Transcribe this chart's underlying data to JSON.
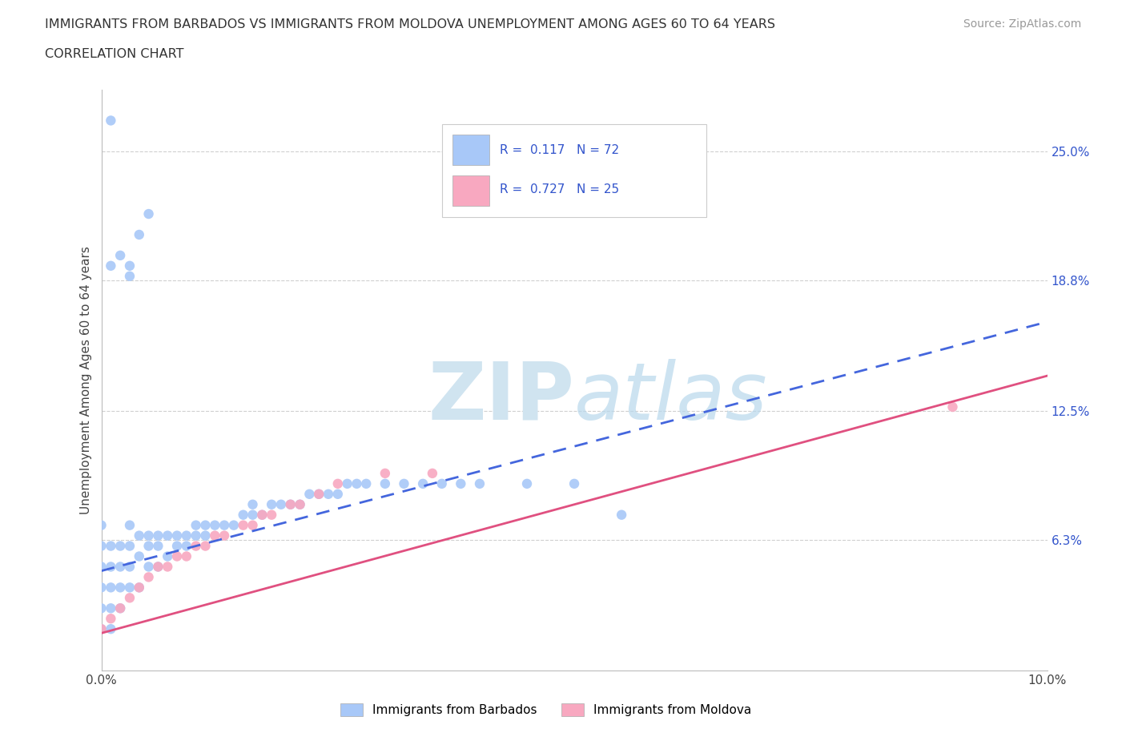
{
  "title_line1": "IMMIGRANTS FROM BARBADOS VS IMMIGRANTS FROM MOLDOVA UNEMPLOYMENT AMONG AGES 60 TO 64 YEARS",
  "title_line2": "CORRELATION CHART",
  "source_text": "Source: ZipAtlas.com",
  "ylabel": "Unemployment Among Ages 60 to 64 years",
  "xlim": [
    0.0,
    0.1
  ],
  "ylim": [
    0.0,
    0.28
  ],
  "ytick_positions": [
    0.0,
    0.063,
    0.125,
    0.188,
    0.25
  ],
  "ytick_labels": [
    "",
    "6.3%",
    "12.5%",
    "18.8%",
    "25.0%"
  ],
  "barbados_color": "#a8c8f8",
  "moldova_color": "#f8a8c0",
  "barbados_line_color": "#4466dd",
  "moldova_line_color": "#e05080",
  "grid_color": "#d0d0d0",
  "watermark_color": "#d0e4f0",
  "r_barbados": 0.117,
  "n_barbados": 72,
  "r_moldova": 0.727,
  "n_moldova": 25,
  "barbados_label": "Immigrants from Barbados",
  "moldova_label": "Immigrants from Moldova",
  "legend_r_color": "#3355cc",
  "legend_n_color": "#cc3355",
  "barbados_x": [
    0.0,
    0.0,
    0.0,
    0.0,
    0.0,
    0.0,
    0.001,
    0.001,
    0.001,
    0.001,
    0.001,
    0.002,
    0.002,
    0.002,
    0.002,
    0.003,
    0.003,
    0.003,
    0.003,
    0.004,
    0.004,
    0.004,
    0.005,
    0.005,
    0.005,
    0.006,
    0.006,
    0.006,
    0.007,
    0.007,
    0.008,
    0.008,
    0.009,
    0.009,
    0.01,
    0.01,
    0.011,
    0.011,
    0.012,
    0.013,
    0.014,
    0.015,
    0.016,
    0.016,
    0.017,
    0.018,
    0.019,
    0.02,
    0.021,
    0.022,
    0.023,
    0.024,
    0.025,
    0.026,
    0.027,
    0.028,
    0.03,
    0.032,
    0.034,
    0.036,
    0.038,
    0.04,
    0.045,
    0.05,
    0.055,
    0.001,
    0.002,
    0.003,
    0.003,
    0.004,
    0.005,
    0.001
  ],
  "barbados_y": [
    0.02,
    0.03,
    0.04,
    0.05,
    0.06,
    0.07,
    0.02,
    0.03,
    0.04,
    0.05,
    0.06,
    0.03,
    0.04,
    0.05,
    0.06,
    0.04,
    0.05,
    0.06,
    0.07,
    0.04,
    0.055,
    0.065,
    0.05,
    0.06,
    0.065,
    0.05,
    0.06,
    0.065,
    0.055,
    0.065,
    0.06,
    0.065,
    0.06,
    0.065,
    0.065,
    0.07,
    0.065,
    0.07,
    0.07,
    0.07,
    0.07,
    0.075,
    0.075,
    0.08,
    0.075,
    0.08,
    0.08,
    0.08,
    0.08,
    0.085,
    0.085,
    0.085,
    0.085,
    0.09,
    0.09,
    0.09,
    0.09,
    0.09,
    0.09,
    0.09,
    0.09,
    0.09,
    0.09,
    0.09,
    0.075,
    0.195,
    0.2,
    0.19,
    0.195,
    0.21,
    0.22,
    0.265
  ],
  "moldova_x": [
    0.0,
    0.001,
    0.002,
    0.003,
    0.004,
    0.005,
    0.006,
    0.007,
    0.008,
    0.009,
    0.01,
    0.011,
    0.012,
    0.013,
    0.015,
    0.016,
    0.017,
    0.018,
    0.02,
    0.021,
    0.023,
    0.025,
    0.03,
    0.035,
    0.09
  ],
  "moldova_y": [
    0.02,
    0.025,
    0.03,
    0.035,
    0.04,
    0.045,
    0.05,
    0.05,
    0.055,
    0.055,
    0.06,
    0.06,
    0.065,
    0.065,
    0.07,
    0.07,
    0.075,
    0.075,
    0.08,
    0.08,
    0.085,
    0.09,
    0.095,
    0.095,
    0.127
  ],
  "barb_line_x": [
    0.0,
    0.1
  ],
  "barb_line_y": [
    0.048,
    0.168
  ],
  "mold_line_x": [
    0.0,
    0.1
  ],
  "mold_line_y": [
    0.018,
    0.142
  ]
}
